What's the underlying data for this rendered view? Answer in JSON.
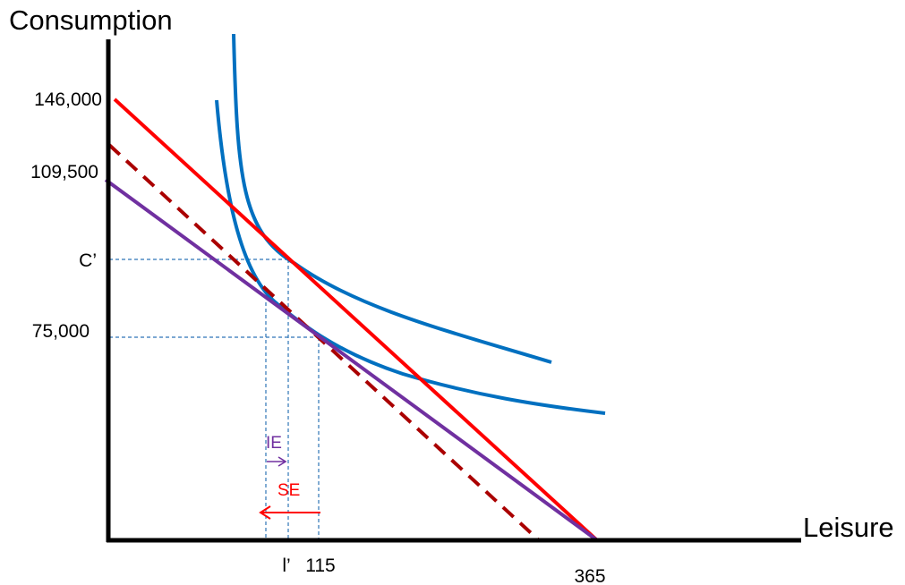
{
  "axes": {
    "y_label": "Consumption",
    "x_label": "Leisure",
    "y_ticks": [
      "146,000",
      "109,500",
      "C’",
      "75,000"
    ],
    "x_ticks": [
      "l’",
      "115",
      "365"
    ]
  },
  "effects": {
    "income": "IE",
    "substitution": "SE"
  },
  "colors": {
    "axis": "#000000",
    "original_budget": "#ff0000",
    "new_budget": "#7030a0",
    "compensated_budget": "#aa0000",
    "indifference_curve": "#0070c0",
    "guide": "#2e75b6",
    "income_effect": "#7030a0",
    "substitution_effect": "#ff0000"
  }
}
